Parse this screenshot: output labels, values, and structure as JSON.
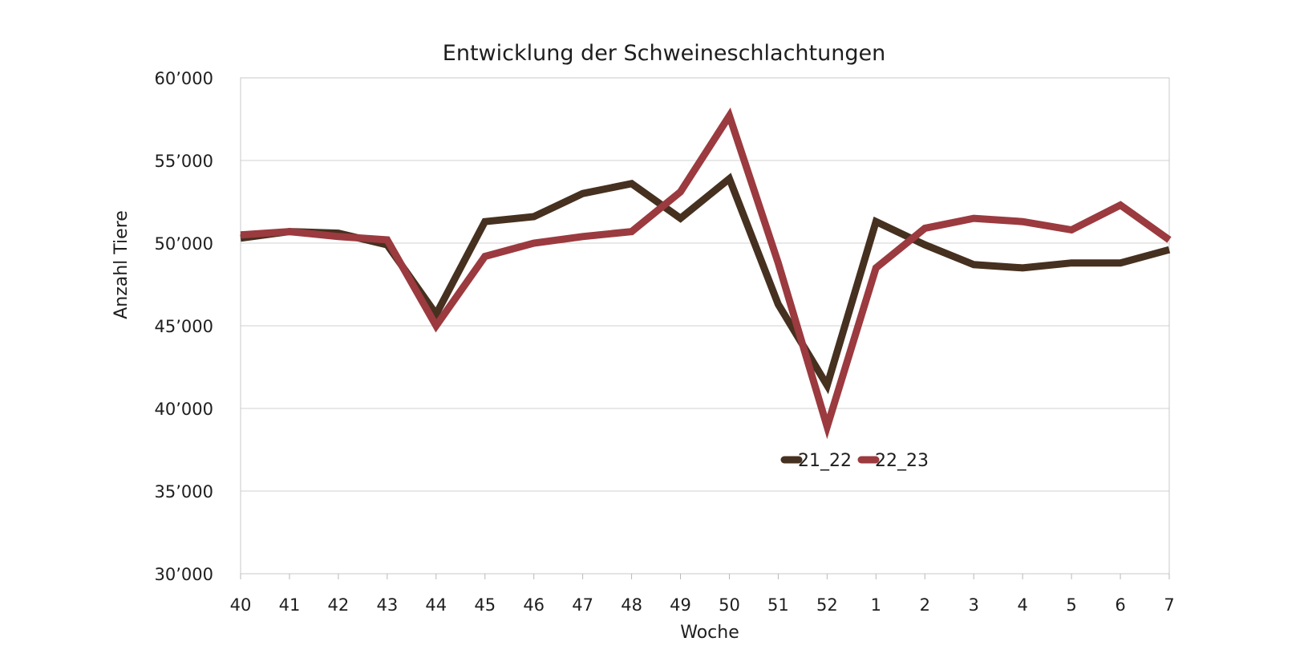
{
  "chart_data": {
    "type": "line",
    "title": "Entwicklung der Schweineschlachtungen",
    "xlabel": "Woche",
    "ylabel": "Anzahl Tiere",
    "categories": [
      "40",
      "41",
      "42",
      "43",
      "44",
      "45",
      "46",
      "47",
      "48",
      "49",
      "50",
      "51",
      "52",
      "1",
      "2",
      "3",
      "4",
      "5",
      "6",
      "7"
    ],
    "ylim": [
      30000,
      60000
    ],
    "yticks": [
      30000,
      35000,
      40000,
      45000,
      50000,
      55000,
      60000
    ],
    "ytick_labels": [
      "30’000",
      "35’000",
      "40’000",
      "45’000",
      "50’000",
      "55’000",
      "60’000"
    ],
    "grid": true,
    "legend_position": "center",
    "series": [
      {
        "name": "21_22",
        "color": "#46301f",
        "values": [
          50300,
          50700,
          50600,
          49900,
          45700,
          51300,
          51600,
          53000,
          53600,
          51500,
          53900,
          46300,
          41400,
          51300,
          49900,
          48700,
          48500,
          48800,
          48800,
          49600
        ]
      },
      {
        "name": "22_23",
        "color": "#9b3a3f",
        "values": [
          50500,
          50700,
          50400,
          50200,
          45000,
          49200,
          50000,
          50400,
          50700,
          53100,
          57700,
          48800,
          38900,
          48500,
          50900,
          51500,
          51300,
          50800,
          52300,
          50200
        ]
      }
    ]
  }
}
